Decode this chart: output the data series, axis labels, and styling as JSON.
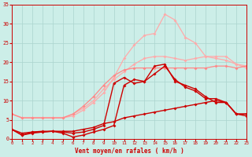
{
  "bg_color": "#cceee8",
  "grid_color": "#aad4ce",
  "xlabel": "Vent moyen/en rafales ( km/h )",
  "xlim": [
    0,
    23
  ],
  "ylim": [
    0,
    35
  ],
  "xticks": [
    0,
    1,
    2,
    3,
    4,
    5,
    6,
    7,
    8,
    9,
    10,
    11,
    12,
    13,
    14,
    15,
    16,
    17,
    18,
    19,
    20,
    21,
    22,
    23
  ],
  "yticks": [
    0,
    5,
    10,
    15,
    20,
    25,
    30,
    35
  ],
  "series": [
    {
      "x": [
        0,
        1,
        2,
        3,
        4,
        5,
        6,
        7,
        8,
        9,
        10,
        11,
        12,
        13,
        14,
        15,
        16,
        17,
        18,
        19,
        20,
        21,
        22,
        23
      ],
      "y": [
        6.5,
        5.5,
        5.5,
        5.5,
        5.5,
        5.5,
        6.0,
        7.5,
        9.5,
        12.0,
        16.0,
        21.0,
        24.5,
        27.0,
        27.5,
        32.5,
        31.0,
        26.5,
        25.0,
        21.5,
        21.0,
        20.5,
        19.5,
        18.5
      ],
      "color": "#ffaaaa",
      "marker": "D",
      "ms": 2.0,
      "lw": 0.9
    },
    {
      "x": [
        0,
        1,
        2,
        3,
        4,
        5,
        6,
        7,
        8,
        9,
        10,
        11,
        12,
        13,
        14,
        15,
        16,
        17,
        18,
        19,
        20,
        21,
        22,
        23
      ],
      "y": [
        6.5,
        5.5,
        5.5,
        5.5,
        5.5,
        5.5,
        6.5,
        8.0,
        10.0,
        13.0,
        15.5,
        17.5,
        19.5,
        21.0,
        21.5,
        21.5,
        21.0,
        20.5,
        21.0,
        21.5,
        21.5,
        21.5,
        19.5,
        19.0
      ],
      "color": "#ffaaaa",
      "marker": "D",
      "ms": 2.0,
      "lw": 0.9
    },
    {
      "x": [
        0,
        1,
        2,
        3,
        4,
        5,
        6,
        7,
        8,
        9,
        10,
        11,
        12,
        13,
        14,
        15,
        16,
        17,
        18,
        19,
        20,
        21,
        22,
        23
      ],
      "y": [
        6.5,
        5.5,
        5.5,
        5.5,
        5.5,
        5.5,
        6.5,
        8.5,
        11.0,
        14.0,
        16.5,
        18.0,
        18.5,
        18.5,
        18.5,
        18.5,
        18.5,
        18.5,
        18.5,
        18.5,
        19.0,
        19.0,
        18.5,
        19.0
      ],
      "color": "#ff8888",
      "marker": "D",
      "ms": 2.0,
      "lw": 0.9
    },
    {
      "x": [
        0,
        1,
        2,
        3,
        4,
        5,
        6,
        7,
        8,
        9,
        10,
        11,
        12,
        13,
        14,
        15,
        16,
        17,
        18,
        19,
        20,
        21,
        22,
        23
      ],
      "y": [
        2.5,
        1.0,
        1.5,
        1.8,
        2.0,
        1.5,
        0.5,
        1.0,
        1.8,
        2.5,
        3.5,
        14.0,
        15.5,
        15.0,
        19.0,
        19.5,
        15.0,
        14.0,
        13.0,
        11.0,
        9.5,
        9.5,
        6.5,
        6.0
      ],
      "color": "#cc0000",
      "marker": "D",
      "ms": 2.0,
      "lw": 1.0
    },
    {
      "x": [
        0,
        1,
        2,
        3,
        4,
        5,
        6,
        7,
        8,
        9,
        10,
        11,
        12,
        13,
        14,
        15,
        16,
        17,
        18,
        19,
        20,
        21,
        22,
        23
      ],
      "y": [
        2.5,
        1.0,
        1.8,
        1.8,
        2.0,
        1.8,
        1.5,
        1.8,
        2.5,
        3.5,
        14.5,
        16.0,
        14.5,
        15.0,
        17.0,
        19.0,
        15.5,
        13.5,
        12.5,
        10.5,
        10.5,
        9.5,
        6.5,
        6.5
      ],
      "color": "#cc0000",
      "marker": "D",
      "ms": 2.0,
      "lw": 1.0
    },
    {
      "x": [
        0,
        1,
        2,
        3,
        4,
        5,
        6,
        7,
        8,
        9,
        10,
        11,
        12,
        13,
        14,
        15,
        16,
        17,
        18,
        19,
        20,
        21,
        22,
        23
      ],
      "y": [
        2.5,
        1.5,
        1.8,
        2.0,
        2.0,
        2.0,
        2.0,
        2.5,
        3.0,
        4.0,
        4.5,
        5.5,
        6.0,
        6.5,
        7.0,
        7.5,
        8.0,
        8.5,
        9.0,
        9.5,
        10.0,
        9.5,
        6.5,
        6.5
      ],
      "color": "#cc0000",
      "marker": "D",
      "ms": 2.0,
      "lw": 1.0
    }
  ]
}
